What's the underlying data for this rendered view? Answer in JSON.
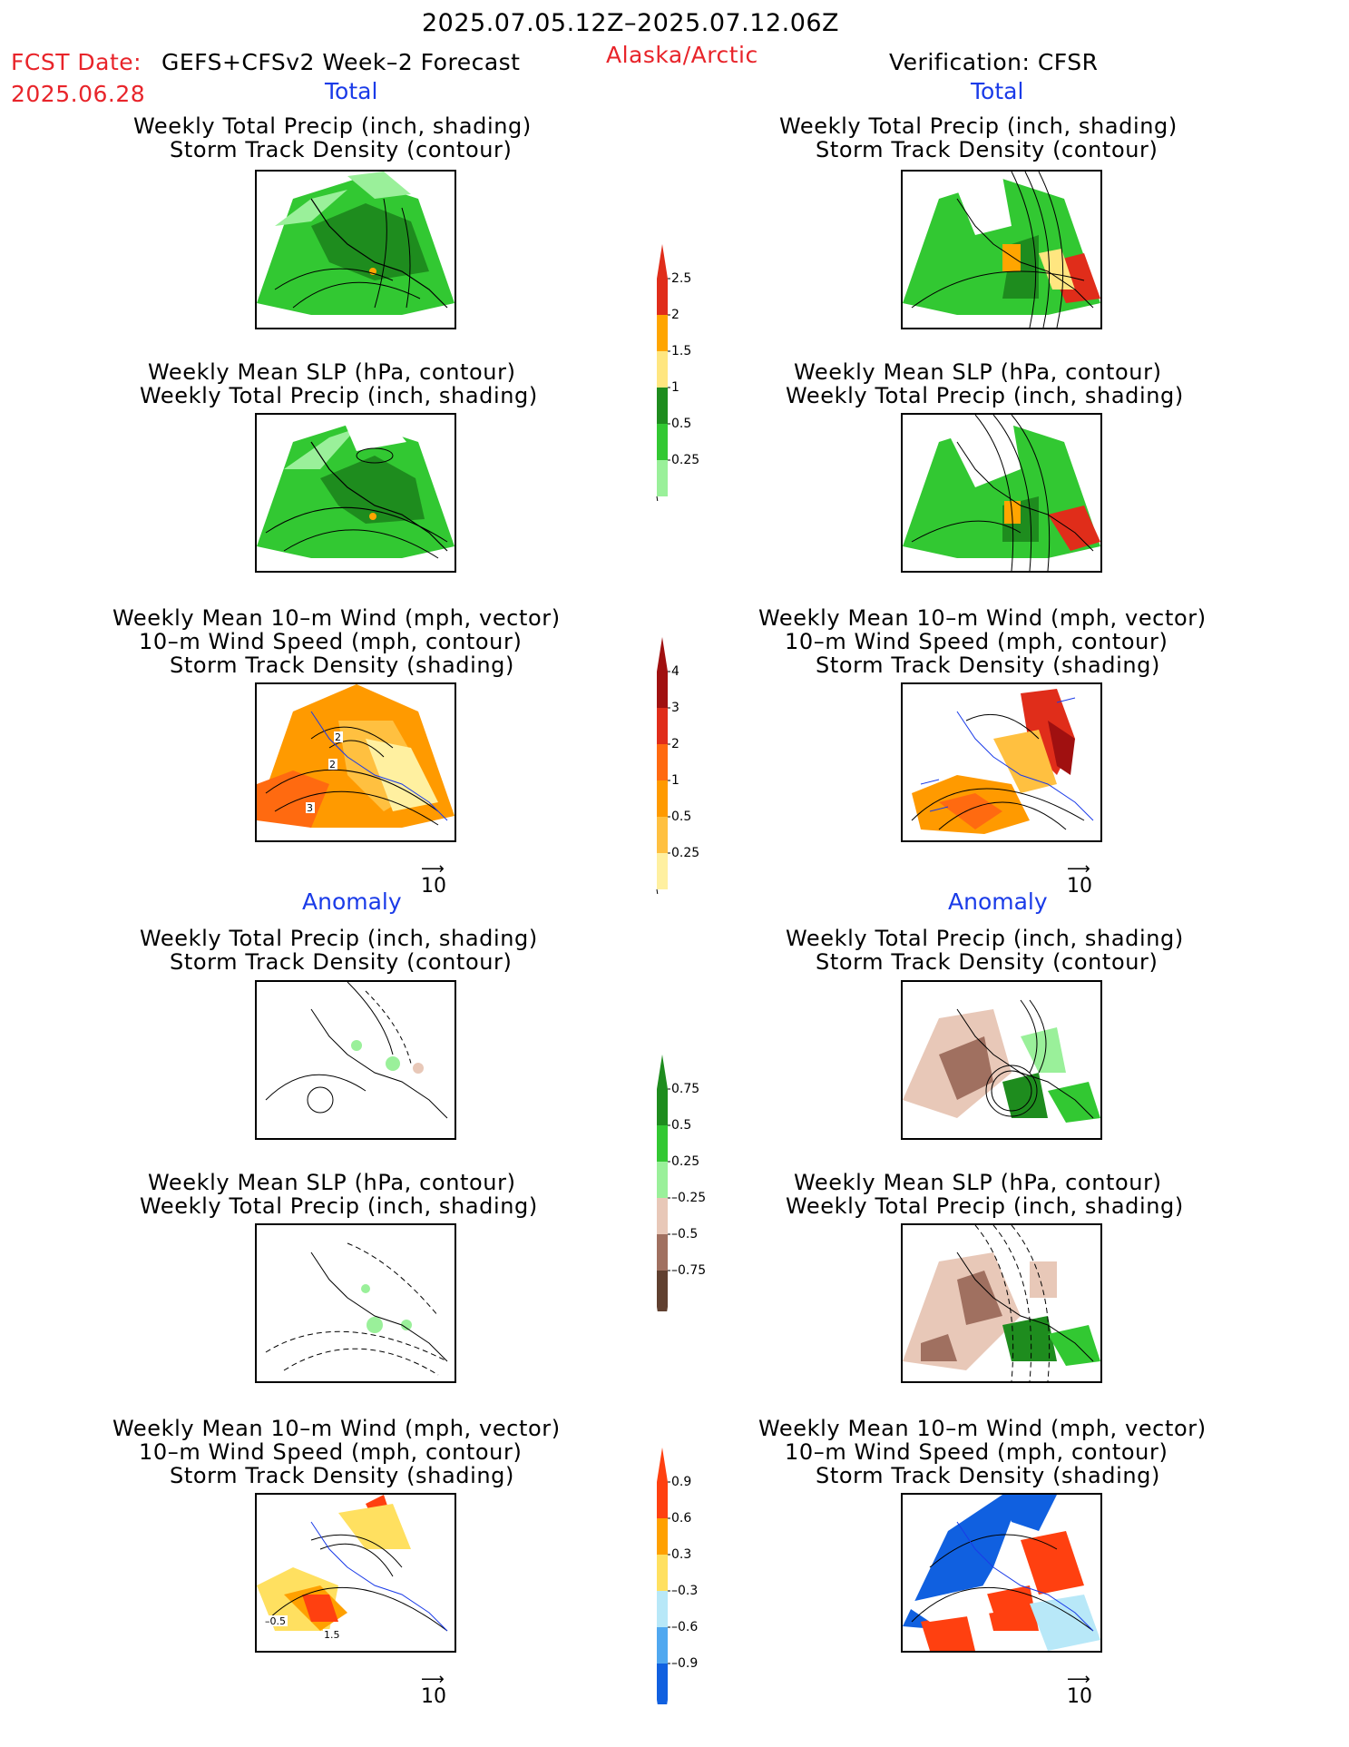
{
  "header": {
    "period": "2025.07.05.12Z–2025.07.12.06Z",
    "fcst_label": "FCST Date:",
    "model": "GEFS+CFSv2 Week–2 Forecast",
    "fcst_date": "2025.06.28",
    "region": "Alaska/Arctic",
    "verification": "Verification: CFSR"
  },
  "sections": {
    "total_left": "Total",
    "total_right": "Total",
    "anom_left": "Anomaly",
    "anom_right": "Anomaly"
  },
  "titles": {
    "precip_storm_1": "Weekly Total Precip (inch, shading)",
    "precip_storm_2": "Storm Track Density (contour)",
    "slp_precip_1": "Weekly Mean SLP (hPa, contour)",
    "slp_precip_2": "Weekly Total Precip (inch, shading)",
    "wind_1": "Weekly Mean 10–m Wind (mph, vector)",
    "wind_2": "10–m Wind Speed (mph, contour)",
    "wind_3": "Storm Track Density (shading)"
  },
  "vector_ref": "10",
  "colorbars": {
    "precip_total": {
      "labels": [
        "2.5",
        "2",
        "1.5",
        "1",
        "0.5",
        "0.25"
      ],
      "colors": [
        "#e02d1a",
        "#ffa500",
        "#ffe680",
        "#1e8c1e",
        "#32c832",
        "#9af09a"
      ]
    },
    "storm_total": {
      "labels": [
        "4",
        "3",
        "2",
        "1",
        "0.5",
        "0.25"
      ],
      "colors": [
        "#a01010",
        "#e02d1a",
        "#ff6a10",
        "#ff9a00",
        "#ffc040",
        "#fff0a0"
      ]
    },
    "precip_anom": {
      "labels": [
        "0.75",
        "0.5",
        "0.25",
        "–0.25",
        "–0.5",
        "–0.75"
      ],
      "colors": [
        "#1e8c1e",
        "#32c832",
        "#9af09a",
        "#e8c8b8",
        "#a07060",
        "#604030"
      ]
    },
    "storm_anom": {
      "labels": [
        "0.9",
        "0.6",
        "0.3",
        "–0.3",
        "–0.6",
        "–0.9"
      ],
      "colors": [
        "#ff4010",
        "#ffa000",
        "#ffe060",
        "#b8e8f8",
        "#50a8f0",
        "#1060e0"
      ]
    }
  },
  "map_labels": {
    "total_wind_left": [
      "2",
      "2",
      "3"
    ],
    "anom_wind_left": [
      "–0.5",
      "1.5"
    ]
  }
}
